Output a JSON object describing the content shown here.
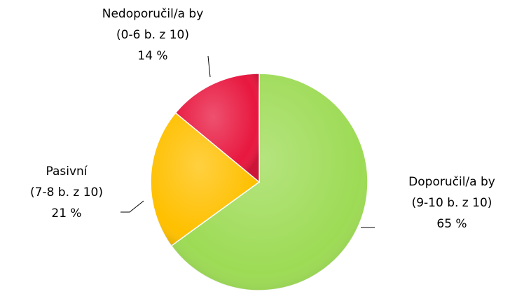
{
  "chart_data": {
    "type": "pie",
    "categories": [
      "Doporučil/a by",
      "Pasivní",
      "Nedoporučil/a by"
    ],
    "category_notes": [
      "(9-10 b. z 10)",
      "(7-8 b. z 10)",
      "(0-6 b. z 10)"
    ],
    "values": [
      65,
      21,
      14
    ],
    "value_labels": [
      "65 %",
      "21 %",
      "14 %"
    ],
    "colors": [
      "#9ddb55",
      "#ffc000",
      "#e8173f"
    ]
  }
}
